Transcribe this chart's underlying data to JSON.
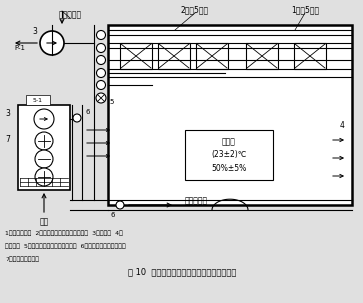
{
  "title": "图 10  现代智能化实验室通风与空调工程设计",
  "legend_text1": "1变风量排风柜  2文丘里变风量阀（局部排风）  3变频风机  4全",
  "legend_text2": "室排风管  5文丘里变风量阀（全室排风）  6文丘里变风量阀（送风）",
  "legend_text3": "7恒温恒湿空调机组",
  "label_top_left": "自其他房间",
  "label_2": "2（共5台）",
  "label_1": "1（共5台）",
  "label_lab": "实验室\n(23±2)℃\n50%±5%",
  "label_xinfeng": "新风",
  "label_qita": "至其他房间",
  "label_P1": "P-1",
  "label_5": "5",
  "label_51": "5-1",
  "label_4": "4",
  "label_6a": "6",
  "label_6b": "6",
  "label_3a": "3",
  "label_3b": "3",
  "label_7": "7",
  "bg": "#e8e8e8"
}
